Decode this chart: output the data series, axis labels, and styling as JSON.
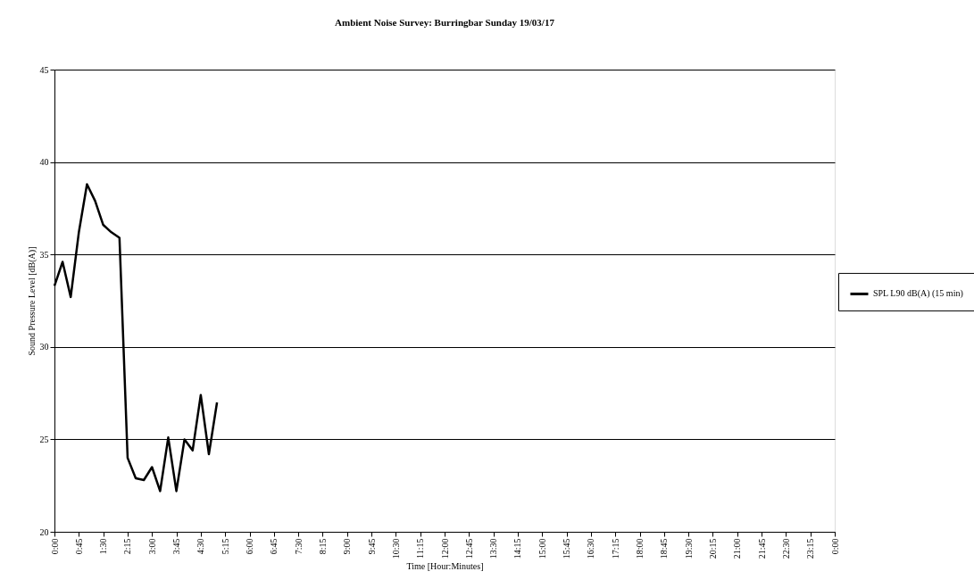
{
  "chart_data": {
    "type": "line",
    "title": "Ambient Noise Survey: Burringbar  Sunday 19/03/17",
    "xlabel": "Time [Hour:Minutes]",
    "ylabel": "Sound Pressure Level [dB(A)]",
    "x": [
      0,
      0.25,
      0.5,
      0.75,
      1,
      1.25,
      1.5,
      1.75,
      2,
      2.25,
      2.5,
      2.75,
      3,
      3.25,
      3.5,
      3.75,
      4,
      4.25,
      4.5,
      4.75,
      5
    ],
    "series": [
      {
        "name": "SPL L90 dB(A) (15 min)",
        "color": "#000000",
        "values": [
          33.3,
          34.6,
          32.7,
          36.2,
          38.8,
          37.9,
          36.6,
          36.2,
          35.9,
          24.0,
          22.9,
          22.8,
          23.5,
          22.2,
          25.1,
          22.2,
          25.0,
          24.4,
          27.4,
          24.2,
          27.0
        ]
      }
    ],
    "xlim": [
      0,
      24
    ],
    "xticks": [
      {
        "value": 0,
        "label": "0:00"
      },
      {
        "value": 0.75,
        "label": "0:45"
      },
      {
        "value": 1.5,
        "label": "1:30"
      },
      {
        "value": 2.25,
        "label": "2:15"
      },
      {
        "value": 3,
        "label": "3:00"
      },
      {
        "value": 3.75,
        "label": "3:45"
      },
      {
        "value": 4.5,
        "label": "4:30"
      },
      {
        "value": 5.25,
        "label": "5:15"
      },
      {
        "value": 6,
        "label": "6:00"
      },
      {
        "value": 6.75,
        "label": "6:45"
      },
      {
        "value": 7.5,
        "label": "7:30"
      },
      {
        "value": 8.25,
        "label": "8:15"
      },
      {
        "value": 9,
        "label": "9:00"
      },
      {
        "value": 9.75,
        "label": "9:45"
      },
      {
        "value": 10.5,
        "label": "10:30"
      },
      {
        "value": 11.25,
        "label": "11:15"
      },
      {
        "value": 12,
        "label": "12:00"
      },
      {
        "value": 12.75,
        "label": "12:45"
      },
      {
        "value": 13.5,
        "label": "13:30"
      },
      {
        "value": 14.25,
        "label": "14:15"
      },
      {
        "value": 15,
        "label": "15:00"
      },
      {
        "value": 15.75,
        "label": "15:45"
      },
      {
        "value": 16.5,
        "label": "16:30"
      },
      {
        "value": 17.25,
        "label": "17:15"
      },
      {
        "value": 18,
        "label": "18:00"
      },
      {
        "value": 18.75,
        "label": "18:45"
      },
      {
        "value": 19.5,
        "label": "19:30"
      },
      {
        "value": 20.25,
        "label": "20:15"
      },
      {
        "value": 21,
        "label": "21:00"
      },
      {
        "value": 21.75,
        "label": "21:45"
      },
      {
        "value": 22.5,
        "label": "22:30"
      },
      {
        "value": 23.25,
        "label": "23:15"
      },
      {
        "value": 24,
        "label": "0:00"
      }
    ],
    "ylim": [
      20,
      45
    ],
    "yticks": [
      20,
      25,
      30,
      35,
      40,
      45
    ],
    "grid": "y",
    "legend": "right",
    "marker": "none",
    "line_style": "solid"
  }
}
